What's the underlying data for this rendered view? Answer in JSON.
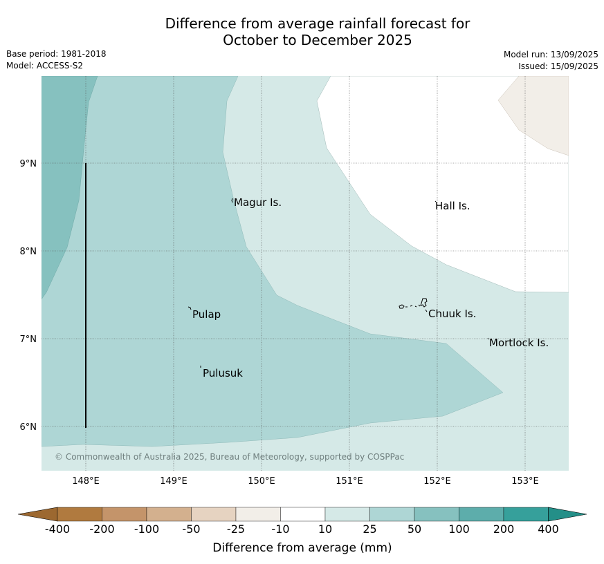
{
  "title": {
    "line1": "Difference from average rainfall forecast for",
    "line2": "October to December 2025"
  },
  "meta": {
    "base_period": "Base period: 1981-2018",
    "model": "Model: ACCESS-S2",
    "model_run": "Model run: 13/09/2025",
    "issued": "Issued: 15/09/2025"
  },
  "map": {
    "lon_ticks": [
      "148°E",
      "149°E",
      "150°E",
      "151°E",
      "152°E",
      "153°E"
    ],
    "lat_ticks": [
      "9°N",
      "8°N",
      "7°N",
      "6°N"
    ],
    "places": [
      {
        "name": "Magur Is."
      },
      {
        "name": "Hall Is."
      },
      {
        "name": "Pulap"
      },
      {
        "name": "Chuuk Is."
      },
      {
        "name": "Mortlock Is."
      },
      {
        "name": "Pulusuk"
      }
    ],
    "copyright": "© Commonwealth of Australia 2025, Bureau of Meteorology, supported by COSPPac"
  },
  "colorbar": {
    "ticks": [
      "-400",
      "-200",
      "-100",
      "-50",
      "-25",
      "-10",
      "10",
      "25",
      "50",
      "100",
      "200",
      "400"
    ],
    "colors": [
      "#b07a3f",
      "#c4946a",
      "#d3b08e",
      "#e6d3c1",
      "#f2eee8",
      "#ffffff",
      "#d5e9e7",
      "#aed6d5",
      "#86c1bf",
      "#5dadab",
      "#36a09b"
    ],
    "extend_low_color": "#9c6830",
    "extend_high_color": "#248f88",
    "label": "Difference from average (mm)"
  },
  "colors": {
    "c_10_25": "#d5e9e7",
    "c_25_50": "#aed6d5",
    "c_50_100": "#86c1bf",
    "c_neg10_neg25": "#f2eee8"
  }
}
